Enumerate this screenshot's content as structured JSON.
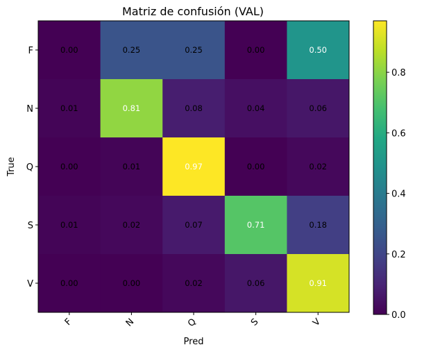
{
  "chart_data": {
    "type": "heatmap",
    "title": "Matriz de confusión (VAL)",
    "xlabel": "Pred",
    "ylabel": "True",
    "x_categories": [
      "F",
      "N",
      "Q",
      "S",
      "V"
    ],
    "y_categories": [
      "F",
      "N",
      "Q",
      "S",
      "V"
    ],
    "values": [
      [
        0.0,
        0.25,
        0.25,
        0.0,
        0.5
      ],
      [
        0.01,
        0.81,
        0.08,
        0.04,
        0.06
      ],
      [
        0.0,
        0.01,
        0.97,
        0.0,
        0.02
      ],
      [
        0.01,
        0.02,
        0.07,
        0.71,
        0.18
      ],
      [
        0.0,
        0.0,
        0.02,
        0.06,
        0.91
      ]
    ],
    "value_labels": [
      [
        "0.00",
        "0.25",
        "0.25",
        "0.00",
        "0.50"
      ],
      [
        "0.01",
        "0.81",
        "0.08",
        "0.04",
        "0.06"
      ],
      [
        "0.00",
        "0.01",
        "0.97",
        "0.00",
        "0.02"
      ],
      [
        "0.01",
        "0.02",
        "0.07",
        "0.71",
        "0.18"
      ],
      [
        "0.00",
        "0.00",
        "0.02",
        "0.06",
        "0.91"
      ]
    ],
    "colorbar": {
      "colormap": "viridis",
      "vmin": 0.0,
      "vmax": 0.97,
      "ticks": [
        0.0,
        0.2,
        0.4,
        0.6,
        0.8
      ],
      "tick_labels": [
        "0.0",
        "0.2",
        "0.4",
        "0.6",
        "0.8"
      ]
    },
    "grid": false
  }
}
